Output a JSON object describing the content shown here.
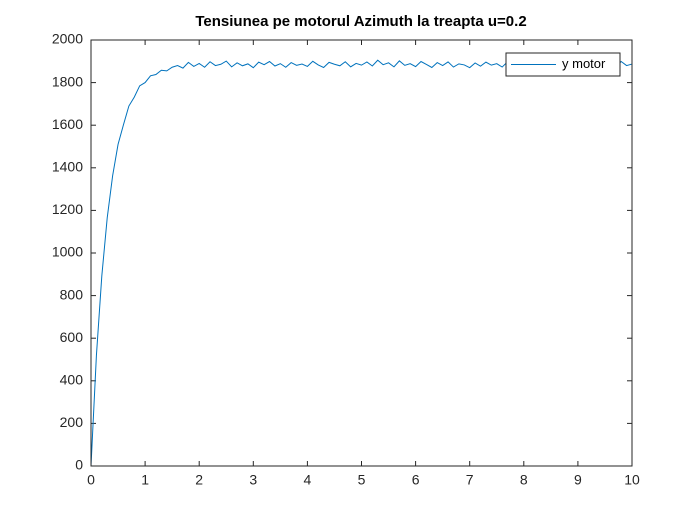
{
  "chart_data": {
    "type": "line",
    "title": "Tensiunea pe motorul Azimuth la treapta u=0.2",
    "x": [
      0,
      0.1,
      0.2,
      0.3,
      0.4,
      0.5,
      0.6,
      0.7,
      0.8,
      0.9,
      1,
      1.1,
      1.2,
      1.3,
      1.4,
      1.5,
      1.6,
      1.7,
      1.8,
      1.9,
      2,
      2.1,
      2.2,
      2.3,
      2.4,
      2.5,
      2.6,
      2.7,
      2.8,
      2.9,
      3,
      3.1,
      3.2,
      3.3,
      3.4,
      3.5,
      3.6,
      3.7,
      3.8,
      3.9,
      4,
      4.1,
      4.2,
      4.3,
      4.4,
      4.5,
      4.6,
      4.7,
      4.8,
      4.9,
      5,
      5.1,
      5.2,
      5.3,
      5.4,
      5.5,
      5.6,
      5.7,
      5.8,
      5.9,
      6,
      6.1,
      6.2,
      6.3,
      6.4,
      6.5,
      6.6,
      6.7,
      6.8,
      6.9,
      7,
      7.1,
      7.2,
      7.3,
      7.4,
      7.5,
      7.6,
      7.7,
      7.8,
      7.9,
      8,
      8.1,
      8.2,
      8.3,
      8.4,
      8.5,
      8.6,
      8.7,
      8.8,
      8.9,
      9,
      9.1,
      9.2,
      9.3,
      9.4,
      9.5,
      9.6,
      9.7,
      9.8,
      9.9,
      10
    ],
    "series": [
      {
        "name": "y motor",
        "color": "#0072bd",
        "values": [
          0,
          519,
          893,
          1166,
          1363,
          1510,
          1602,
          1690,
          1732,
          1785,
          1800,
          1832,
          1838,
          1858,
          1855,
          1872,
          1880,
          1868,
          1895,
          1876,
          1890,
          1872,
          1898,
          1880,
          1886,
          1901,
          1874,
          1893,
          1879,
          1888,
          1870,
          1896,
          1884,
          1899,
          1878,
          1889,
          1872,
          1894,
          1881,
          1887,
          1876,
          1900,
          1883,
          1871,
          1895,
          1886,
          1879,
          1898,
          1874,
          1890,
          1882,
          1897,
          1878,
          1905,
          1884,
          1893,
          1874,
          1902,
          1881,
          1889,
          1875,
          1899,
          1885,
          1871,
          1894,
          1880,
          1897,
          1873,
          1888,
          1883,
          1870,
          1892,
          1877,
          1896,
          1882,
          1889,
          1873,
          1898,
          1879,
          1886,
          1874,
          1895,
          1881,
          1899,
          1876,
          1890,
          1872,
          1893,
          1884,
          1879,
          1896,
          1875,
          1888,
          1870,
          1897,
          1882,
          1891,
          1874,
          1899,
          1880,
          1887
        ]
      }
    ],
    "xlim": [
      0,
      10
    ],
    "xticks": [
      0,
      1,
      2,
      3,
      4,
      5,
      6,
      7,
      8,
      9,
      10
    ],
    "ylim": [
      0,
      2000
    ],
    "yticks": [
      0,
      200,
      400,
      600,
      800,
      1000,
      1200,
      1400,
      1600,
      1800,
      2000
    ],
    "legend": "top-right"
  }
}
